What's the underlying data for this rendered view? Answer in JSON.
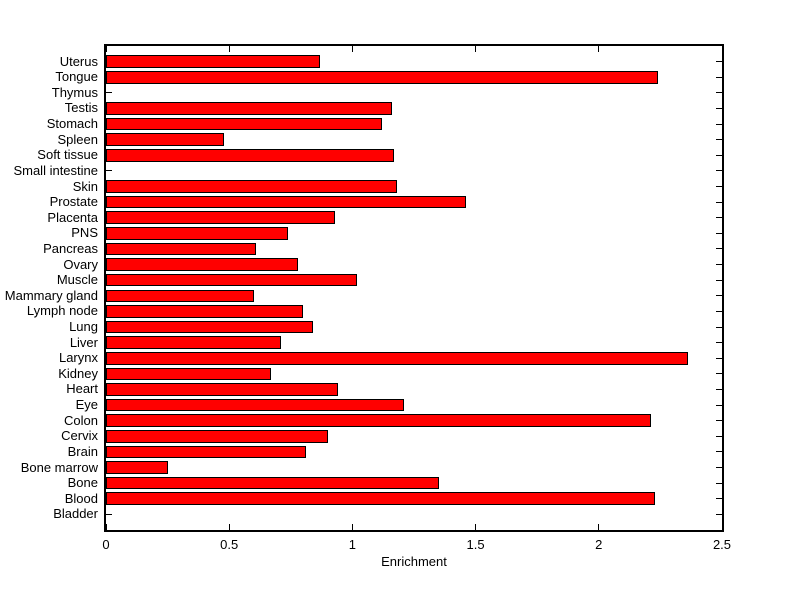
{
  "chart_data": {
    "type": "bar",
    "orientation": "horizontal",
    "title": "",
    "xlabel": "Enrichment",
    "ylabel": "",
    "xlim": [
      0,
      2.5
    ],
    "xticks": [
      0,
      0.5,
      1,
      1.5,
      2,
      2.5
    ],
    "xtick_labels": [
      "0",
      "0.5",
      "1",
      "1.5",
      "2",
      "2.5"
    ],
    "grid": false,
    "legend": null,
    "bar_color": "#ff0000",
    "bar_edge_color": "#000000",
    "axis_color": "#000000",
    "background_color": "#ffffff",
    "categories": [
      "Uterus",
      "Tongue",
      "Thymus",
      "Testis",
      "Stomach",
      "Spleen",
      "Soft tissue",
      "Small intestine",
      "Skin",
      "Prostate",
      "Placenta",
      "PNS",
      "Pancreas",
      "Ovary",
      "Muscle",
      "Mammary gland",
      "Lymph node",
      "Lung",
      "Liver",
      "Larynx",
      "Kidney",
      "Heart",
      "Eye",
      "Colon",
      "Cervix",
      "Brain",
      "Bone marrow",
      "Bone",
      "Blood",
      "Bladder"
    ],
    "values": [
      0.87,
      2.24,
      0,
      1.16,
      1.12,
      0.48,
      1.17,
      0,
      1.18,
      1.46,
      0.93,
      0.74,
      0.61,
      0.78,
      1.02,
      0.6,
      0.8,
      0.84,
      0.71,
      2.36,
      0.67,
      0.94,
      1.21,
      2.21,
      0.9,
      0.81,
      0.25,
      1.35,
      2.23,
      0
    ]
  }
}
